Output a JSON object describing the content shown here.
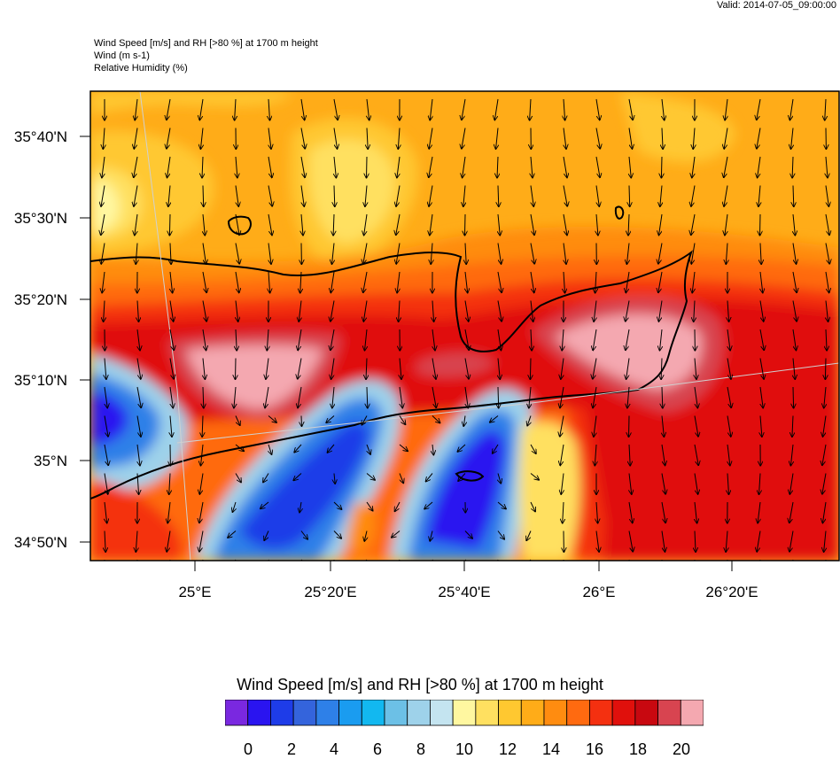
{
  "header": {
    "valid": "Valid: 2014-07-05_09:00:00",
    "title_line1": "Wind Speed [m/s] and RH [>80 %] at 1700 m height",
    "title_line2": "Wind   (m s-1)",
    "title_line3": "Relative Humidity   (%)"
  },
  "map": {
    "lat_labels": [
      "35°40'N",
      "35°30'N",
      "35°20'N",
      "35°10'N",
      "35°N",
      "34°50'N"
    ],
    "lon_labels": [
      "25°E",
      "25°20'E",
      "25°40'E",
      "26°E",
      "26°20'E"
    ],
    "wind_direction": "from north (arrows pointing south)"
  },
  "colorbar": {
    "title": "Wind Speed [m/s] and RH [>80 %] at 1700 m height",
    "labels": [
      "0",
      "2",
      "4",
      "6",
      "8",
      "10",
      "12",
      "14",
      "16",
      "18",
      "20"
    ],
    "colors": [
      "#7a28e0",
      "#2a14f0",
      "#1e3ce8",
      "#3464dc",
      "#2e80e8",
      "#1a9cf0",
      "#12b8f0",
      "#6cc0e6",
      "#9ed2ea",
      "#c4e4f0",
      "#fff7a0",
      "#ffe060",
      "#ffc830",
      "#ffac18",
      "#ff8c10",
      "#ff6a10",
      "#f43010",
      "#e0100c",
      "#c80810",
      "#d84450",
      "#f4a8b0"
    ]
  }
}
